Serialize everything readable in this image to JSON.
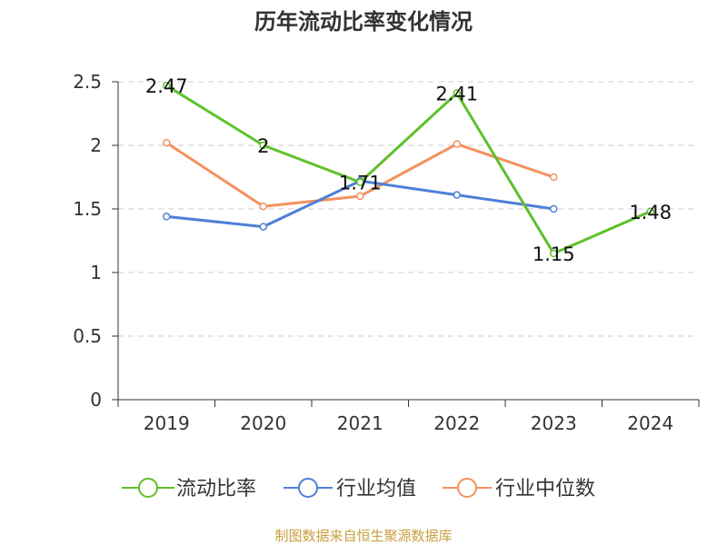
{
  "chart_data": {
    "type": "line",
    "title": "历年流动比率变化情况",
    "categories": [
      "2019",
      "2020",
      "2021",
      "2022",
      "2023",
      "2024"
    ],
    "ylim": [
      0,
      2.5
    ],
    "yticks": [
      "0",
      "0.5",
      "1",
      "1.5",
      "2",
      "2.5"
    ],
    "grid": true,
    "legend_position": "bottom",
    "series": [
      {
        "name": "流动比率",
        "color": "#5ec12b",
        "values": [
          2.47,
          2.0,
          1.71,
          2.41,
          1.15,
          1.48
        ],
        "labels": [
          "2.47",
          "2",
          "1.71",
          "2.41",
          "1.15",
          "1.48"
        ]
      },
      {
        "name": "行业均值",
        "color": "#4e7fd8",
        "values": [
          1.44,
          1.36,
          1.72,
          1.61,
          1.5,
          null
        ]
      },
      {
        "name": "行业中位数",
        "color": "#f4915e",
        "values": [
          2.02,
          1.52,
          1.6,
          2.01,
          1.75,
          null
        ]
      }
    ]
  },
  "footer": {
    "text": "制图数据来自恒生聚源数据库",
    "color": "#c8a040"
  }
}
